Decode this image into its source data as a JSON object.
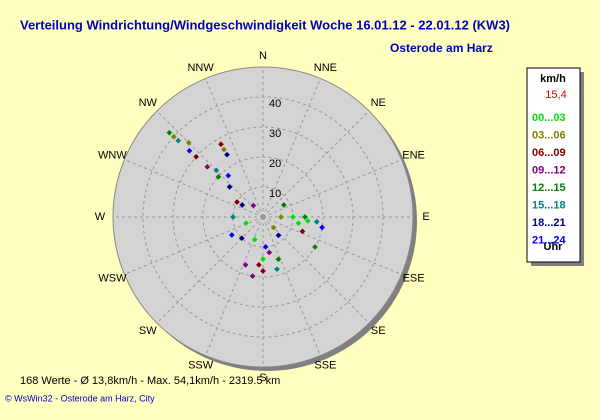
{
  "chart_data": {
    "type": "polar-scatter",
    "title": "Verteilung Windrichtung/Windgeschwindigkeit  Woche 16.01.12 - 22.01.12 (KW3)",
    "subtitle": "Osterode am Harz",
    "directions": [
      "N",
      "NNE",
      "NE",
      "ENE",
      "E",
      "ESE",
      "SE",
      "SSE",
      "S",
      "SSW",
      "SW",
      "WSW",
      "W",
      "WNW",
      "NW",
      "NNW"
    ],
    "rlim": [
      0,
      50
    ],
    "rticks": [
      10,
      20,
      30,
      40
    ],
    "legend_title": "km/h",
    "legend_value": "15,4",
    "legend_footer": "Uhr",
    "series": [
      {
        "name": "00...03",
        "color": "#00e000",
        "dir": [
          90,
          95,
          100,
          180,
          200,
          250
        ],
        "speed": [
          10,
          15,
          12,
          14,
          8,
          6
        ]
      },
      {
        "name": "03...06",
        "color": "#808000",
        "dir": [
          312,
          315,
          330,
          90,
          135
        ],
        "speed": [
          40,
          35,
          26,
          6,
          5
        ]
      },
      {
        "name": "06...09",
        "color": "#800000",
        "dir": [
          330,
          312,
          110,
          180,
          185,
          300
        ],
        "speed": [
          28,
          30,
          14,
          18,
          16,
          10
        ]
      },
      {
        "name": "09...12",
        "color": "#800080",
        "dir": [
          312,
          200,
          190,
          170,
          320
        ],
        "speed": [
          25,
          17,
          20,
          12,
          5
        ]
      },
      {
        "name": "12...15",
        "color": "#008000",
        "dir": [
          312,
          312,
          90,
          120,
          160,
          60
        ],
        "speed": [
          42,
          20,
          14,
          20,
          15,
          8
        ]
      },
      {
        "name": "15...18",
        "color": "#008080",
        "dir": [
          312,
          315,
          270,
          95,
          165
        ],
        "speed": [
          38,
          22,
          10,
          18,
          18
        ]
      },
      {
        "name": "18...21",
        "color": "#000080",
        "dir": [
          312,
          300,
          225,
          330,
          140
        ],
        "speed": [
          15,
          8,
          10,
          24,
          8
        ]
      },
      {
        "name": "21...24",
        "color": "#0000ff",
        "dir": [
          312,
          320,
          240,
          100,
          175
        ],
        "speed": [
          33,
          18,
          12,
          20,
          10
        ]
      }
    ],
    "summary": "168 Werte   -   Ø 13,8km/h   -   Max. 54,1km/h   -   2319.5 km",
    "footer": "© WsWin32  -  Osterode am Harz, City"
  }
}
